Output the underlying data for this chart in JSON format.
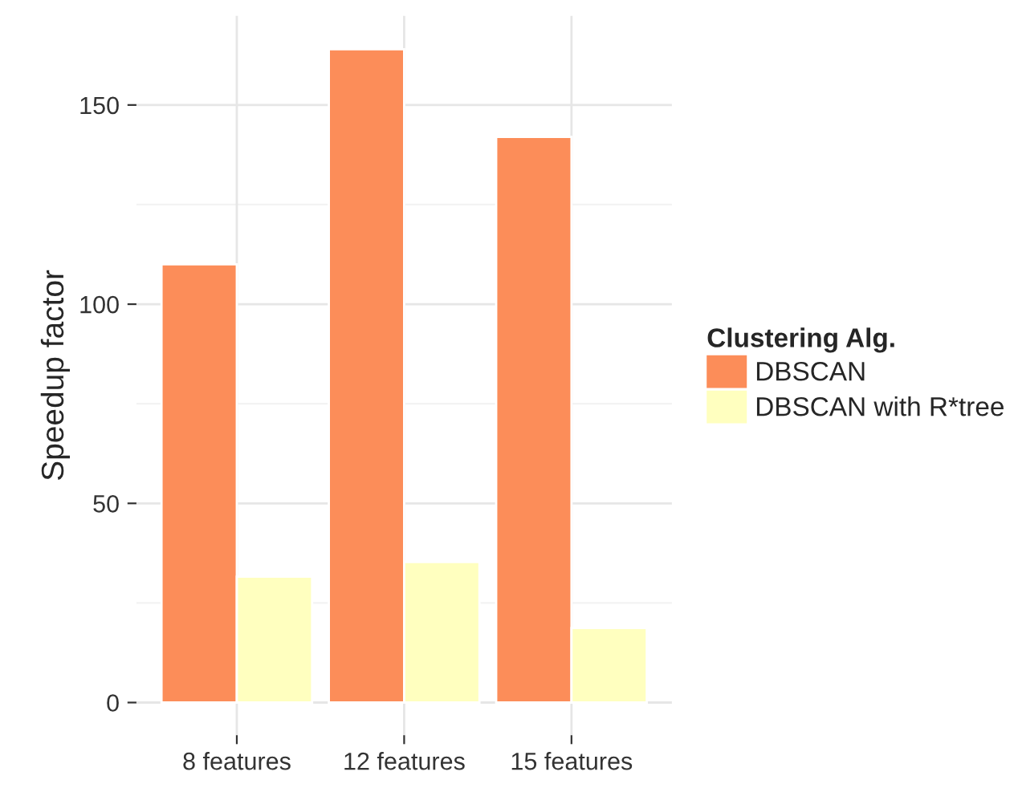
{
  "chart_data": {
    "type": "bar",
    "categories": [
      "8 features",
      "12 features",
      "15 features"
    ],
    "series": [
      {
        "name": "DBSCAN",
        "color": "#fc8d59",
        "values": [
          110,
          164,
          142
        ]
      },
      {
        "name": "DBSCAN with R*tree",
        "color": "#ffffbf",
        "values": [
          31.6,
          35.3,
          18.7
        ]
      }
    ],
    "ylabel": "Speedup factor",
    "legend_title": "Clustering Alg.",
    "legend": "right",
    "ylim": [
      -8.2,
      172.4
    ],
    "yticks": [
      0,
      50,
      100,
      150
    ],
    "grid": true
  }
}
